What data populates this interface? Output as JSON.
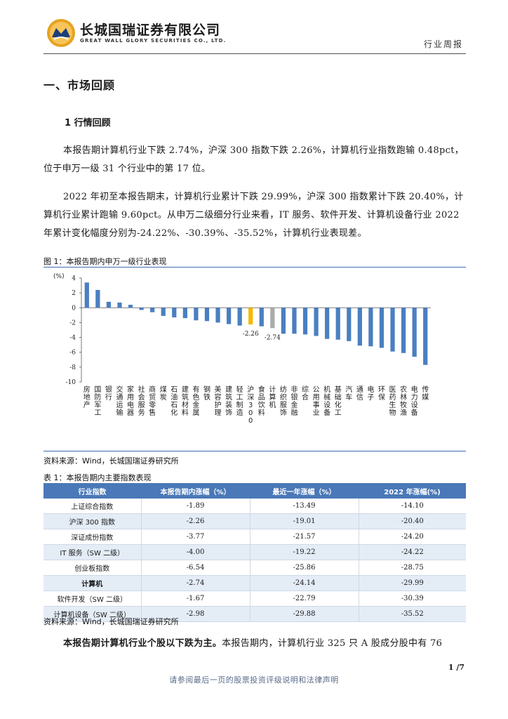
{
  "header": {
    "company_cn": "长城国瑞证券有限公司",
    "company_en": "GREAT WALL GLORY SECURITIES CO., LTD.",
    "report_type": "行业周报"
  },
  "section_title": "一、市场回顾",
  "subsection_title": "1 行情回顾",
  "paragraphs": {
    "p1": "本报告期计算机行业下跌 2.74%，沪深 300 指数下跌 2.26%，计算机行业指数跑输 0.48pct，位于申万一级 31 个行业中的第 17 位。",
    "p2": "2022 年初至本报告期末，计算机行业累计下跌 29.99%，沪深 300 指数累计下跌 20.40%，计算机行业累计跑输 9.60pct。从申万二级细分行业来看，IT 服务、软件开发、计算机设备行业 2022 年累计变化幅度分别为-24.22%、-30.39%、-35.52%，计算机行业表现差。",
    "p3_bold": "本报告期计算机行业个股以下跌为主。",
    "p3_rest": "本报告期内，计算机行业 325 只 A 股成分股中有 76"
  },
  "figure": {
    "title": "图 1：本报告期内申万一级行业表现",
    "source": "资料来源：Wind，长城国瑞证券研究所"
  },
  "chart_data": {
    "type": "bar",
    "ylabel": "(%)",
    "ylim": [
      -10,
      4
    ],
    "yticks": [
      4,
      2,
      0,
      -2,
      -4,
      -6,
      -8,
      -10
    ],
    "grid": false,
    "categories": [
      "房地产",
      "国防军工",
      "银行",
      "交通运输",
      "家用电器",
      "社会服务",
      "商贸零售",
      "煤炭",
      "石油石化",
      "建筑材料",
      "有色金属",
      "钢铁",
      "美容护理",
      "建筑装饰",
      "轻工制造",
      "沪深300",
      "食品饮料",
      "计算机",
      "纺织服饰",
      "非银金融",
      "综合",
      "公用事业",
      "机械设备",
      "基础化工",
      "汽车",
      "通信",
      "电子",
      "环保",
      "医药生物",
      "农林牧渔",
      "电力设备",
      "传媒"
    ],
    "values": [
      3.4,
      2.4,
      0.8,
      0.7,
      0.4,
      -0.3,
      -0.6,
      -1.1,
      -1.3,
      -1.4,
      -1.7,
      -1.8,
      -2.0,
      -2.2,
      -2.4,
      -2.26,
      -2.5,
      -2.74,
      -3.5,
      -3.5,
      -3.6,
      -3.8,
      -4.2,
      -4.3,
      -4.5,
      -5.1,
      -5.2,
      -5.4,
      -5.9,
      -6.1,
      -6.6,
      -7.7
    ],
    "highlights": {
      "沪深300": "#f5b800",
      "计算机": "#aaaaaa"
    },
    "bar_color": "#4a7fc1",
    "data_labels": [
      {
        "category": "沪深300",
        "label": "-2.26"
      },
      {
        "category": "计算机",
        "label": "-2.74"
      }
    ]
  },
  "table": {
    "title": "表 1：本报告期内主要指数表现",
    "source": "资料来源：Wind，长城国瑞证券研究所",
    "headers": [
      "行业指数",
      "本报告期内涨幅（%）",
      "最近一年涨幅（%）",
      "2022 年涨幅(%)"
    ],
    "rows": [
      [
        "上证综合指数",
        "-1.89",
        "-13.49",
        "-14.10"
      ],
      [
        "沪深 300 指数",
        "-2.26",
        "-19.01",
        "-20.40"
      ],
      [
        "深证成份指数",
        "-3.77",
        "-21.57",
        "-24.20"
      ],
      [
        "IT 服务（SW 二级）",
        "-4.00",
        "-19.22",
        "-24.22"
      ],
      [
        "创业板指数",
        "-6.54",
        "-25.86",
        "-28.75"
      ],
      [
        "计算机",
        "-2.74",
        "-24.14",
        "-29.99"
      ],
      [
        "软件开发（SW 二级）",
        "-1.67",
        "-22.79",
        "-30.39"
      ],
      [
        "计算机设备（SW 二级）",
        "-2.98",
        "-29.88",
        "-35.52"
      ]
    ]
  },
  "footer": {
    "page_number": "1 /7",
    "note": "请参阅最后一页的股票投资评级说明和法律声明"
  },
  "colors": {
    "brand_gold": "#e0a020",
    "table_header": "#4a78b8",
    "table_alt_row": "#e4ecf6"
  }
}
